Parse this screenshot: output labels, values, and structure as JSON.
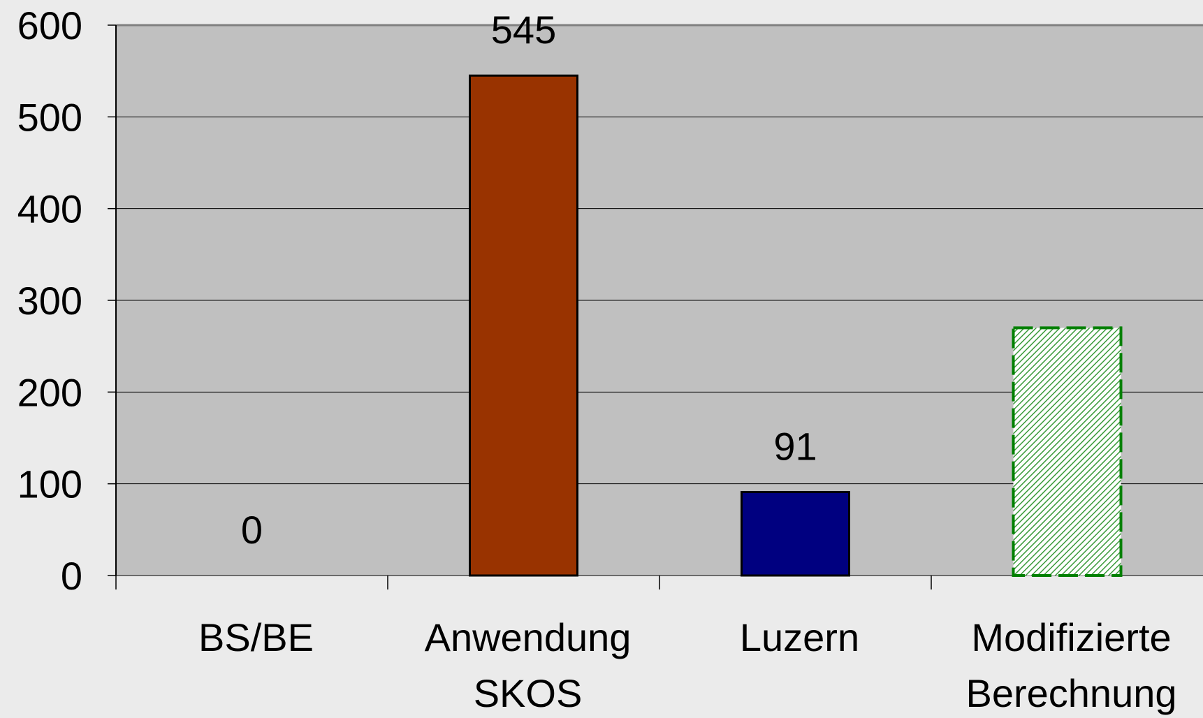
{
  "chart_data": {
    "type": "bar",
    "categories": [
      "BS/BE",
      "Anwendung SKOS",
      "Luzern",
      "Modifizierte Berechnung"
    ],
    "values": [
      0,
      545,
      91,
      270
    ],
    "value_labels": [
      0,
      545,
      91,
      null
    ],
    "colors": [
      "#993300",
      "#993300",
      "#000080",
      "#008000"
    ],
    "hatched": [
      false,
      false,
      false,
      true
    ],
    "ylim": [
      0,
      600
    ],
    "yticks": [
      0,
      100,
      200,
      300,
      400,
      500,
      600
    ],
    "grid": true
  }
}
